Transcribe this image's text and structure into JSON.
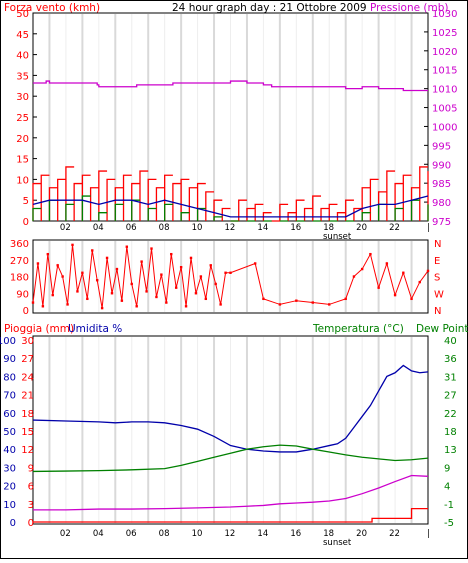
{
  "header": {
    "wind_label": "Forza vento (kmh)",
    "title": "24 hour graph day : 21 Ottobre 2009",
    "pressure_label": "Pressione (mb)"
  },
  "middle_header": {
    "rain_label": "Pioggia (mm)",
    "humidity_label": "Umidita %",
    "temp_label": "Temperatura (°C)",
    "dew_label": "Dew Point"
  },
  "colors": {
    "wind_max": "#ff0000",
    "wind_avg": "#008000",
    "wind_low": "#0000aa",
    "pressure": "#cc00cc",
    "direction": "#ff0000",
    "humidity": "#0000aa",
    "temperature": "#008000",
    "dew_point": "#cc00cc",
    "rain": "#ff0000",
    "grid_major": "#d9d9d9",
    "text_red": "#ff0000",
    "text_magenta": "#cc00cc",
    "text_blue": "#0000aa",
    "text_green": "#008000"
  },
  "chart_data": [
    {
      "type": "line",
      "name": "wind_and_pressure",
      "x_ticks": [
        "02",
        "04",
        "06",
        "08",
        "10",
        "12",
        "14",
        "16",
        "18",
        "20",
        "22",
        "|"
      ],
      "x_annotation": "sunset",
      "left_axis": {
        "label": "Forza vento (kmh)",
        "ylim": [
          0,
          50
        ],
        "ticks": [
          0,
          5,
          10,
          15,
          20,
          25,
          30,
          35,
          40,
          45,
          50
        ]
      },
      "right_axis": {
        "label": "Pressione (mb)",
        "ylim": [
          975,
          1030
        ],
        "ticks": [
          975,
          980,
          985,
          990,
          995,
          1000,
          1005,
          1010,
          1015,
          1020,
          1025,
          1030
        ]
      },
      "series": [
        {
          "name": "Pressione (mb)",
          "axis": "right",
          "x": [
            0,
            0.8,
            1.0,
            3.9,
            4.0,
            6.0,
            6.3,
            8.0,
            8.5,
            11.0,
            12.0,
            13.0,
            14.0,
            14.5,
            17.0,
            19.0,
            20.0,
            21.0,
            22.0,
            22.5,
            24.0
          ],
          "y": [
            1011.5,
            1012,
            1011.5,
            1011,
            1010.5,
            1010.5,
            1011,
            1011,
            1011.5,
            1011.5,
            1012,
            1011.5,
            1011,
            1010.5,
            1010.5,
            1010,
            1010.5,
            1010,
            1010,
            1009.5,
            1009.5
          ]
        },
        {
          "name": "wind_max",
          "axis": "left",
          "x": [
            0,
            0.5,
            1,
            1.5,
            2,
            2.5,
            3,
            3.5,
            4,
            4.5,
            5,
            5.5,
            6,
            6.5,
            7,
            7.5,
            8,
            8.5,
            9,
            9.5,
            10,
            10.5,
            11,
            11.5,
            12,
            12.5,
            13,
            13.5,
            14,
            14.5,
            15,
            15.5,
            16,
            16.5,
            17,
            17.5,
            18,
            18.5,
            19,
            19.5,
            20,
            20.5,
            21,
            21.5,
            22,
            22.5,
            23,
            23.5,
            24
          ],
          "y": [
            9,
            11,
            8,
            10,
            13,
            9,
            11,
            8,
            12,
            10,
            8,
            11,
            9,
            12,
            10,
            8,
            11,
            9,
            10,
            8,
            9,
            7,
            5,
            3,
            0,
            5,
            3,
            4,
            2,
            0,
            4,
            2,
            5,
            3,
            6,
            3,
            4,
            2,
            5,
            3,
            8,
            10,
            7,
            12,
            9,
            11,
            8,
            13,
            12
          ]
        },
        {
          "name": "wind_avg",
          "axis": "left",
          "x": [
            0,
            1,
            2,
            3,
            4,
            5,
            6,
            7,
            8,
            9,
            10,
            11,
            12,
            13,
            14,
            15,
            16,
            17,
            18,
            19,
            20,
            21,
            22,
            23,
            24
          ],
          "y": [
            3,
            5,
            4,
            6,
            2,
            4,
            5,
            3,
            4,
            2,
            3,
            1,
            0,
            0,
            0,
            0,
            0,
            0,
            0,
            0,
            2,
            4,
            3,
            5,
            4
          ]
        },
        {
          "name": "wind_low",
          "axis": "left",
          "x": [
            0,
            1,
            2,
            3,
            4,
            5,
            6,
            7,
            8,
            9,
            10,
            11,
            12,
            13,
            14,
            15,
            16,
            17,
            18,
            19,
            20,
            21,
            22,
            23,
            24
          ],
          "y": [
            4,
            5,
            5,
            5,
            4,
            5,
            5,
            4,
            5,
            4,
            3,
            2,
            1,
            1,
            1,
            1,
            1,
            1,
            1,
            1,
            3,
            4,
            4,
            5,
            6
          ]
        }
      ]
    },
    {
      "type": "scatter",
      "name": "wind_direction",
      "left_axis": {
        "ylim": [
          0,
          360
        ],
        "ticks": [
          0,
          90,
          180,
          270,
          360
        ]
      },
      "right_axis": {
        "ticks": [
          "N",
          "E",
          "S",
          "W",
          "N"
        ]
      },
      "series": [
        {
          "name": "direction",
          "x": [
            0,
            0.3,
            0.6,
            0.9,
            1.2,
            1.5,
            1.8,
            2.1,
            2.4,
            2.7,
            3.0,
            3.3,
            3.6,
            3.9,
            4.2,
            4.5,
            4.8,
            5.1,
            5.4,
            5.7,
            6.0,
            6.3,
            6.6,
            6.9,
            7.2,
            7.5,
            7.8,
            8.1,
            8.4,
            8.7,
            9.0,
            9.3,
            9.6,
            9.9,
            10.2,
            10.5,
            10.8,
            11.1,
            11.4,
            11.7,
            12.0,
            13.5,
            14.0,
            15.0,
            16.0,
            17.0,
            18.0,
            19.0,
            19.5,
            20.0,
            20.5,
            21.0,
            21.5,
            22.0,
            22.5,
            23.0,
            23.5,
            24.0
          ],
          "y": [
            40,
            250,
            20,
            300,
            80,
            240,
            180,
            30,
            350,
            100,
            200,
            60,
            320,
            160,
            10,
            280,
            90,
            220,
            50,
            340,
            140,
            20,
            260,
            100,
            330,
            70,
            190,
            40,
            300,
            120,
            230,
            20,
            280,
            90,
            180,
            60,
            240,
            140,
            30,
            200,
            200,
            250,
            60,
            30,
            50,
            40,
            30,
            60,
            180,
            220,
            300,
            120,
            250,
            80,
            200,
            60,
            150,
            210
          ]
        }
      ]
    },
    {
      "type": "line",
      "name": "humidity_temp_rain",
      "x_ticks": [
        "02",
        "04",
        "06",
        "08",
        "10",
        "12",
        "14",
        "16",
        "18",
        "20",
        "22",
        "|"
      ],
      "x_annotation": "sunset",
      "left_axis_rain": {
        "label": "Pioggia (mm)",
        "ylim": [
          0,
          30
        ],
        "ticks": [
          0,
          3,
          6,
          9,
          12,
          15,
          18,
          21,
          24,
          27,
          30
        ]
      },
      "left_axis_humidity": {
        "label": "Umidita %",
        "ylim": [
          0,
          100
        ],
        "ticks": [
          0,
          10,
          20,
          30,
          40,
          50,
          60,
          70,
          80,
          90,
          100
        ]
      },
      "right_axis": {
        "label": "Temperatura (°C)",
        "ylim": [
          -5,
          40
        ],
        "ticks": [
          -5,
          -1,
          4,
          9,
          13,
          18,
          22,
          27,
          31,
          36,
          40
        ]
      },
      "series": [
        {
          "name": "Umidita %",
          "axis": "humidity",
          "x": [
            0,
            2,
            4,
            5,
            6,
            7,
            8,
            9,
            10,
            11,
            12,
            13,
            14,
            15,
            16,
            17,
            18,
            18.5,
            19,
            19.5,
            20,
            20.5,
            21,
            21.5,
            22,
            22.5,
            23,
            23.5,
            24
          ],
          "y": [
            56,
            55.5,
            55,
            54.5,
            55,
            55,
            54.5,
            53,
            51,
            47,
            42,
            40,
            39,
            38.5,
            38.5,
            40,
            42,
            43,
            46,
            52,
            58,
            64,
            72,
            80,
            82,
            86,
            83,
            82,
            82.5
          ]
        },
        {
          "name": "Temperatura (°C)",
          "axis": "right",
          "x": [
            0,
            2,
            4,
            6,
            8,
            9,
            10,
            11,
            12,
            13,
            14,
            15,
            16,
            17,
            18,
            19,
            20,
            21,
            22,
            23,
            24
          ],
          "y": [
            7.5,
            7.6,
            7.7,
            7.9,
            8.2,
            9,
            10,
            11,
            12,
            13,
            13.6,
            14,
            13.8,
            13,
            12.3,
            11.6,
            11,
            10.6,
            10.2,
            10.4,
            10.8
          ]
        },
        {
          "name": "Dew Point",
          "axis": "right",
          "x": [
            0,
            2,
            4,
            6,
            8,
            10,
            12,
            13,
            14,
            15,
            16,
            17,
            18,
            19,
            20,
            21,
            22,
            23,
            24
          ],
          "y": [
            -2,
            -2,
            -1.8,
            -1.8,
            -1.7,
            -1.5,
            -1.3,
            -1.1,
            -0.9,
            -0.5,
            -0.3,
            -0.1,
            0.2,
            0.8,
            2,
            3.4,
            5,
            6.5,
            6.3
          ]
        },
        {
          "name": "Pioggia (mm)",
          "axis": "rain",
          "x": [
            0,
            20.6,
            20.6,
            23.0,
            23.0,
            24.0
          ],
          "y": [
            0,
            0,
            0.6,
            0.6,
            2.2,
            2.2
          ]
        }
      ]
    }
  ]
}
